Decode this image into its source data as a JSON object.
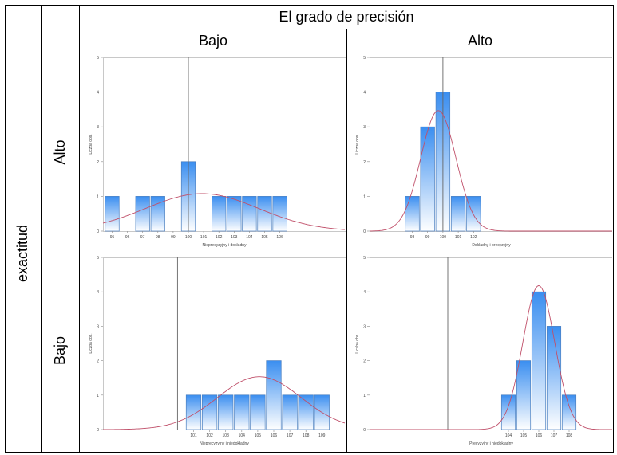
{
  "table": {
    "header_top": "El grado de precisión",
    "col_low": "Bajo",
    "col_high": "Alto",
    "row_axis": "exactitud",
    "row_high": "Alto",
    "row_low": "Bajo"
  },
  "colors": {
    "bar_fill_top": "#3a8ef0",
    "bar_fill_bottom": "#ffffff",
    "bar_stroke": "#4a7fc0",
    "curve": "#c0506a",
    "reference_line": "#666666",
    "frame": "#c8c8c8"
  },
  "chart_data": [
    {
      "type": "bar",
      "position": "top-left",
      "xlabel": "Nieprecyzyjny i dokładny",
      "ylabel": "Liczba obs.",
      "ylim": [
        0,
        5
      ],
      "yticks": [
        "0",
        "1",
        "2",
        "3",
        "4",
        "5"
      ],
      "categories": [
        "95",
        "96",
        "97",
        "98",
        "99",
        "100",
        "101",
        "102",
        "103",
        "104",
        "105",
        "106"
      ],
      "values": [
        1,
        0,
        1,
        1,
        0,
        2,
        0,
        1,
        1,
        1,
        1,
        1
      ],
      "reference": "100",
      "normal_curve": {
        "mean": "100.9",
        "sd": "3.7",
        "n": 10
      }
    },
    {
      "type": "bar",
      "position": "top-right",
      "xlabel": "Dokładny i precyzyjny",
      "ylabel": "Liczba obs.",
      "ylim": [
        0,
        5
      ],
      "yticks": [
        "0",
        "1",
        "2",
        "3",
        "4",
        "5"
      ],
      "categories": [
        "98",
        "99",
        "100",
        "101",
        "102"
      ],
      "values": [
        1,
        3,
        4,
        1,
        1
      ],
      "reference": "100",
      "normal_curve": {
        "mean": "99.7",
        "sd": "1.15",
        "n": 10
      }
    },
    {
      "type": "bar",
      "position": "bottom-left",
      "xlabel": "Nieprecyzyjny i niedokładny",
      "ylabel": "Liczba obs.",
      "ylim": [
        0,
        5
      ],
      "yticks": [
        "0",
        "1",
        "2",
        "3",
        "4",
        "5"
      ],
      "categories": [
        "101",
        "102",
        "103",
        "104",
        "105",
        "106",
        "107",
        "108",
        "109"
      ],
      "values": [
        1,
        1,
        1,
        1,
        1,
        2,
        1,
        1,
        1
      ],
      "reference": "100",
      "normal_curve": {
        "mean": "105.1",
        "sd": "2.6",
        "n": 10
      }
    },
    {
      "type": "bar",
      "position": "bottom-right",
      "xlabel": "Precyzyjny i niedokładny",
      "ylabel": "Liczba obs.",
      "ylim": [
        0,
        5
      ],
      "yticks": [
        "0",
        "1",
        "2",
        "3",
        "4",
        "5"
      ],
      "categories": [
        "104",
        "105",
        "106",
        "107",
        "108"
      ],
      "values": [
        1,
        2,
        4,
        3,
        1
      ],
      "reference": "100",
      "normal_curve": {
        "mean": "106.0",
        "sd": "1.05",
        "n": 11
      }
    }
  ]
}
